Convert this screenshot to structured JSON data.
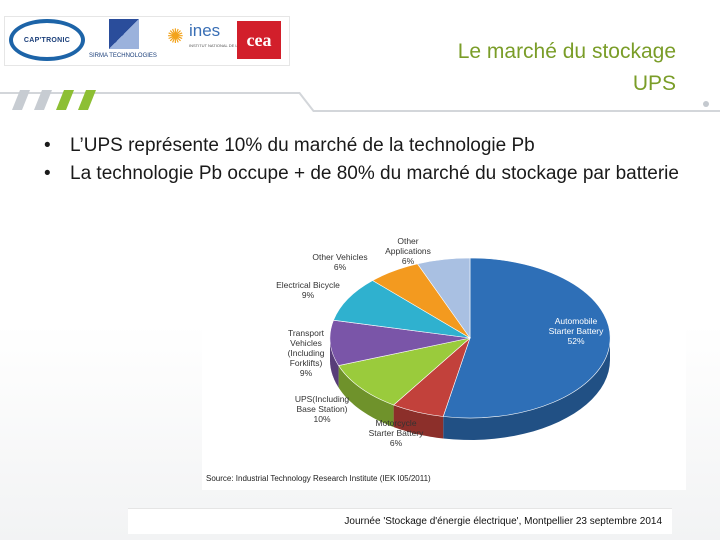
{
  "logos": {
    "captronic": "CAP'TRONIC",
    "sirma": "SIRMA TECHNOLOGIES",
    "ines": "ines",
    "ines_sub": "INSTITUT NATIONAL DE L'ÉNERGIE SOLAIRE",
    "cea": "cea"
  },
  "slide": {
    "title_line1": "Le marché du stockage",
    "title_line2": "UPS",
    "bullets": [
      "L’UPS représente 10% du marché de la technologie Pb",
      "La technologie Pb occupe + de 80% du marché du stockage par batterie"
    ],
    "bullet_glyph": "•",
    "footer": "Journée 'Stockage d'énergie électrique', Montpellier  23 septembre  2014"
  },
  "colors": {
    "title": "#7a9d28",
    "band_gray": "#c8ccd1",
    "band_green": "#8dbf34"
  },
  "chart_data": {
    "type": "pie",
    "title": "",
    "source": "Source: Industrial Technology Research Institute (IEK I05/2011)",
    "slices": [
      {
        "label_lines": [
          "Automobile",
          "Starter Battery"
        ],
        "value": 52,
        "color": "#2e6fb7"
      },
      {
        "label_lines": [
          "Motorcycle",
          "Starter Battery"
        ],
        "value": 6,
        "color": "#c2413b"
      },
      {
        "label_lines": [
          "UPS(Including",
          "Base Station)"
        ],
        "value": 10,
        "color": "#9acb3c"
      },
      {
        "label_lines": [
          "Transport",
          "Vehicles",
          "(Including",
          "Forklifts)"
        ],
        "value": 9,
        "color": "#7a55a8"
      },
      {
        "label_lines": [
          "Electrical Bicycle"
        ],
        "value": 9,
        "color": "#2fb1cf"
      },
      {
        "label_lines": [
          "Other Vehicles"
        ],
        "value": 6,
        "color": "#f39a1f"
      },
      {
        "label_lines": [
          "Other",
          "Applications"
        ],
        "value": 6,
        "color": "#a9c0e2"
      }
    ]
  }
}
